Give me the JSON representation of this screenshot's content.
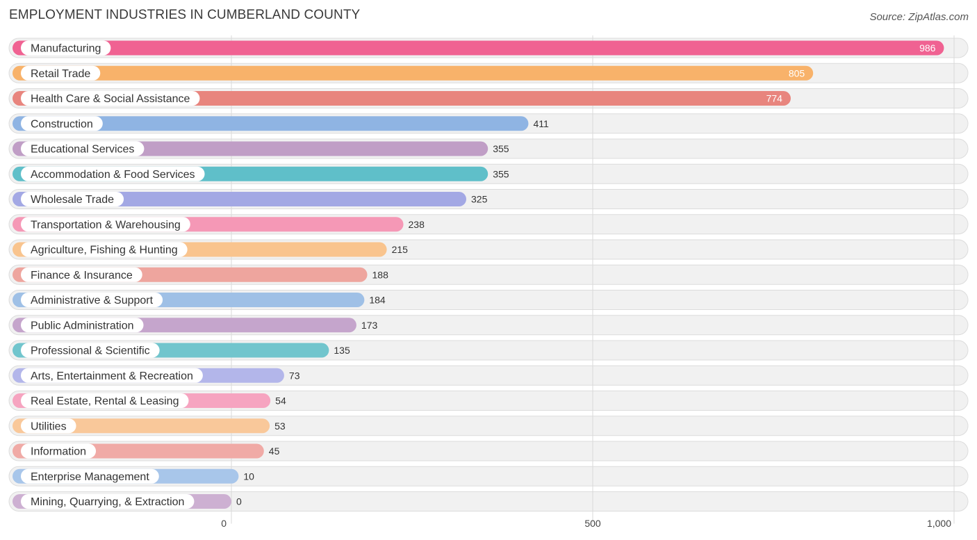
{
  "header": {
    "title": "EMPLOYMENT INDUSTRIES IN CUMBERLAND COUNTY",
    "source": "Source: ZipAtlas.com"
  },
  "chart_data": {
    "type": "bar",
    "orientation": "horizontal",
    "title": "EMPLOYMENT INDUSTRIES IN CUMBERLAND COUNTY",
    "xlabel": "",
    "ylabel": "",
    "xlim": [
      0,
      1000
    ],
    "ticks": [
      {
        "value": 0,
        "label": "0"
      },
      {
        "value": 500,
        "label": "500"
      },
      {
        "value": 1000,
        "label": "1,000"
      }
    ],
    "categories": [
      "Manufacturing",
      "Retail Trade",
      "Health Care & Social Assistance",
      "Construction",
      "Educational Services",
      "Accommodation & Food Services",
      "Wholesale Trade",
      "Transportation & Warehousing",
      "Agriculture, Fishing & Hunting",
      "Finance & Insurance",
      "Administrative & Support",
      "Public Administration",
      "Professional & Scientific",
      "Arts, Entertainment & Recreation",
      "Real Estate, Rental & Leasing",
      "Utilities",
      "Information",
      "Enterprise Management",
      "Mining, Quarrying, & Extraction"
    ],
    "values": [
      986,
      805,
      774,
      411,
      355,
      355,
      325,
      238,
      215,
      188,
      184,
      173,
      135,
      73,
      54,
      53,
      45,
      10,
      0
    ],
    "colors": [
      "#f06292",
      "#f8b26a",
      "#e8857e",
      "#8fb4e3",
      "#c09ec6",
      "#5fbfc9",
      "#a3a8e4",
      "#f598b6",
      "#f9c48e",
      "#eea59e",
      "#9fc0e6",
      "#c5a5cc",
      "#71c5cd",
      "#b3b6ea",
      "#f6a4c0",
      "#f9c89a",
      "#f0aaa6",
      "#a8c6ea",
      "#cdb0d2"
    ]
  }
}
